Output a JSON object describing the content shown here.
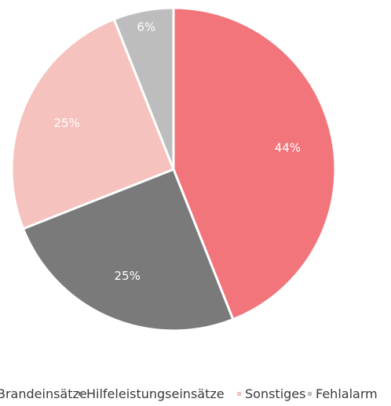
{
  "chart_data": {
    "type": "pie",
    "title": "",
    "slices": [
      {
        "label": "Brandeinsätze",
        "value": 44,
        "display": "44%",
        "color": "#f2757c"
      },
      {
        "label": "Hilfeleistungseinsätze",
        "value": 25,
        "display": "25%",
        "color": "#7a7a7a"
      },
      {
        "label": "Sonstiges",
        "value": 25,
        "display": "25%",
        "color": "#f6c2bd"
      },
      {
        "label": "Fehlalarm",
        "value": 6,
        "display": "6%",
        "color": "#bdbdbd"
      }
    ],
    "legend": {
      "position": "bottom",
      "items": [
        "Brandeinsätze",
        "Hilfeleistungseinsätze",
        "Sonstiges",
        "Fehlalarm"
      ]
    }
  }
}
